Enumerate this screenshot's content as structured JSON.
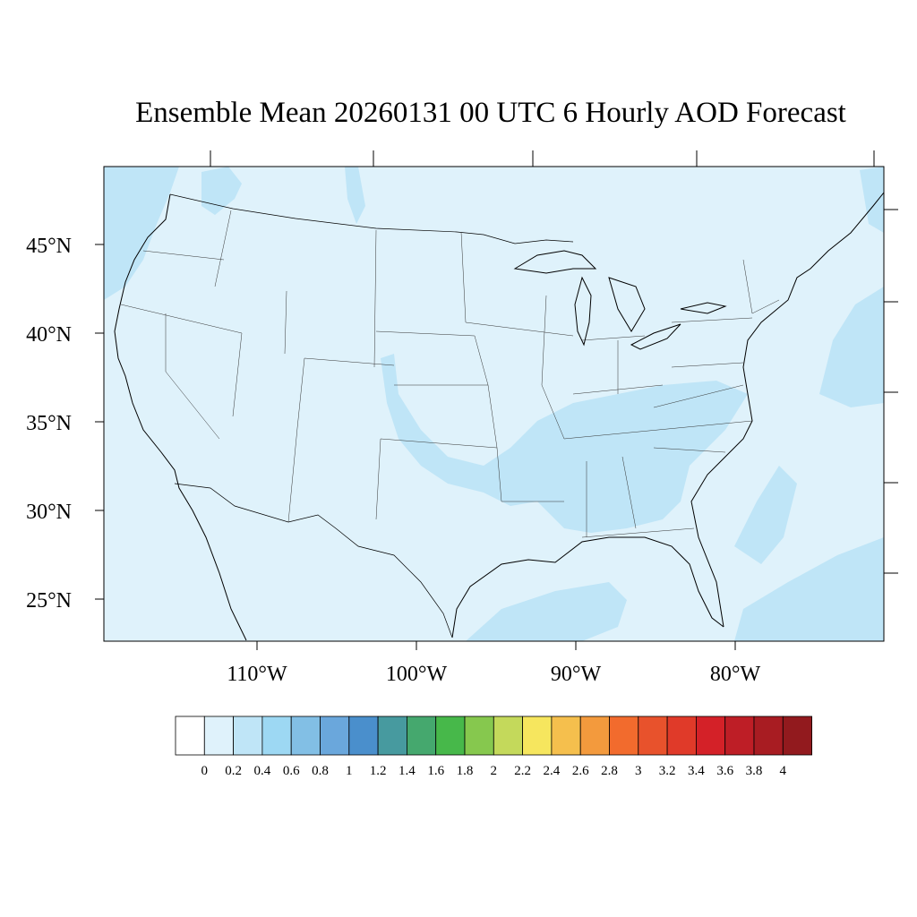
{
  "title": "Ensemble Mean 20260131 00 UTC 6 Hourly AOD Forecast",
  "map": {
    "lat_labels": [
      "45°N",
      "40°N",
      "35°N",
      "30°N",
      "25°N"
    ],
    "lon_labels": [
      "110°W",
      "100°W",
      "90°W",
      "80°W"
    ],
    "background_color": "#dff2fb",
    "enhanced_color": "#bfe5f7",
    "border_color": "#000000"
  },
  "colorbar": {
    "labels": [
      "0",
      "0.2",
      "0.4",
      "0.6",
      "0.8",
      "1",
      "1.2",
      "1.4",
      "1.6",
      "1.8",
      "2",
      "2.2",
      "2.4",
      "2.6",
      "2.8",
      "3",
      "3.2",
      "3.4",
      "3.6",
      "3.8",
      "4"
    ],
    "colors": [
      "#ffffff",
      "#dff2fb",
      "#bfe5f7",
      "#9dd8f3",
      "#82bfe5",
      "#6aa7dc",
      "#4a8fcc",
      "#479a9f",
      "#45a86e",
      "#47b84a",
      "#86c84e",
      "#c4d95b",
      "#f6e65e",
      "#f5bf4d",
      "#f39a3d",
      "#f26b2d",
      "#e8522c",
      "#e03a29",
      "#d42128",
      "#be1e26",
      "#a81c22",
      "#921a1e"
    ]
  }
}
